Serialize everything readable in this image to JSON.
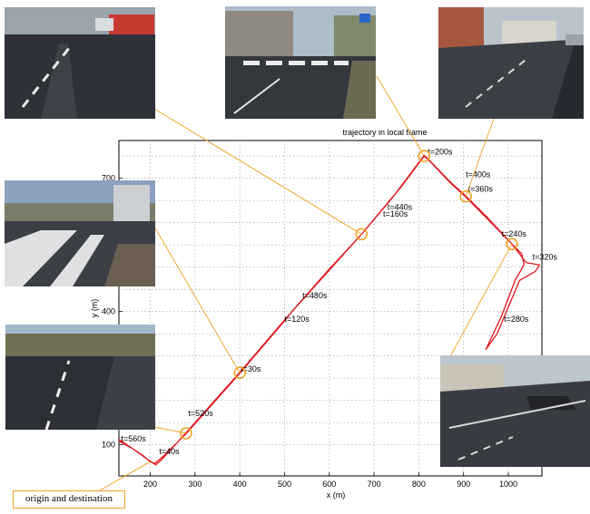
{
  "chart_data": {
    "type": "line",
    "title": "trajectory in local frame",
    "xlabel": "x (m)",
    "ylabel": "y (m)",
    "xlim": [
      130,
      1075
    ],
    "ylim": [
      30,
      785
    ],
    "x_ticks": [
      200,
      300,
      400,
      500,
      600,
      700,
      800,
      900,
      1000
    ],
    "y_ticks": [
      100,
      400,
      700
    ],
    "grid": true,
    "line_color": "#e0161b",
    "series": [
      {
        "values": [
          [
            130,
            108
          ],
          [
            160,
            92
          ],
          [
            185,
            75
          ],
          [
            200,
            62
          ],
          [
            210,
            58
          ],
          [
            230,
            75
          ],
          [
            280,
            125
          ],
          [
            400,
            261
          ],
          [
            500,
            379
          ],
          [
            520,
            404
          ],
          [
            595,
            490
          ],
          [
            672,
            574
          ],
          [
            760,
            680
          ],
          [
            812,
            750
          ],
          [
            825,
            738
          ],
          [
            870,
            690
          ],
          [
            905,
            658
          ],
          [
            950,
            612
          ],
          [
            1008,
            552
          ],
          [
            1040,
            510
          ],
          [
            1070,
            505
          ],
          [
            1060,
            490
          ],
          [
            1025,
            470
          ],
          [
            1000,
            410
          ],
          [
            975,
            350
          ],
          [
            950,
            315
          ],
          [
            985,
            390
          ],
          [
            1015,
            470
          ],
          [
            1035,
            505
          ],
          [
            1030,
            530
          ],
          [
            1008,
            552
          ],
          [
            950,
            615
          ],
          [
            905,
            660
          ],
          [
            870,
            692
          ],
          [
            822,
            742
          ],
          [
            812,
            752
          ],
          [
            805,
            742
          ],
          [
            790,
            722
          ],
          [
            740,
            655
          ],
          [
            672,
            574
          ],
          [
            500,
            381
          ],
          [
            400,
            263
          ],
          [
            280,
            127
          ],
          [
            225,
            66
          ],
          [
            212,
            55
          ],
          [
            190,
            70
          ],
          [
            160,
            92
          ],
          [
            130,
            112
          ]
        ]
      }
    ],
    "time_labels": [
      {
        "text": "t=560s",
        "x": 135,
        "y": 108
      },
      {
        "text": "t=40s",
        "x": 220,
        "y": 79
      },
      {
        "text": "t=520s",
        "x": 285,
        "y": 165
      },
      {
        "text": "t=30s",
        "x": 402,
        "y": 265
      },
      {
        "text": "t=120s",
        "x": 500,
        "y": 377
      },
      {
        "text": "t=480s",
        "x": 540,
        "y": 430
      },
      {
        "text": "t=160s",
        "x": 720,
        "y": 614
      },
      {
        "text": "t=440s",
        "x": 730,
        "y": 629
      },
      {
        "text": "t=200s",
        "x": 820,
        "y": 753
      },
      {
        "text": "t=400s",
        "x": 905,
        "y": 702
      },
      {
        "text": "t=360s",
        "x": 910,
        "y": 670
      },
      {
        "text": "t=240s",
        "x": 985,
        "y": 569
      },
      {
        "text": "t=320s",
        "x": 1054,
        "y": 517
      },
      {
        "text": "t=280s",
        "x": 990,
        "y": 377
      }
    ],
    "highlight_points": [
      {
        "x": 280,
        "y": 126
      },
      {
        "x": 400,
        "y": 262
      },
      {
        "x": 672,
        "y": 574
      },
      {
        "x": 812,
        "y": 750
      },
      {
        "x": 905,
        "y": 659
      },
      {
        "x": 1008,
        "y": 552
      }
    ],
    "highlight_color": "#f3a01f"
  },
  "callout": {
    "label": "origin and destination",
    "color": "#f3a01f"
  },
  "photos": [
    {
      "id": "photo-top-left"
    },
    {
      "id": "photo-top-center"
    },
    {
      "id": "photo-top-right"
    },
    {
      "id": "photo-mid-left"
    },
    {
      "id": "photo-bottom-left"
    },
    {
      "id": "photo-bottom-right"
    }
  ]
}
